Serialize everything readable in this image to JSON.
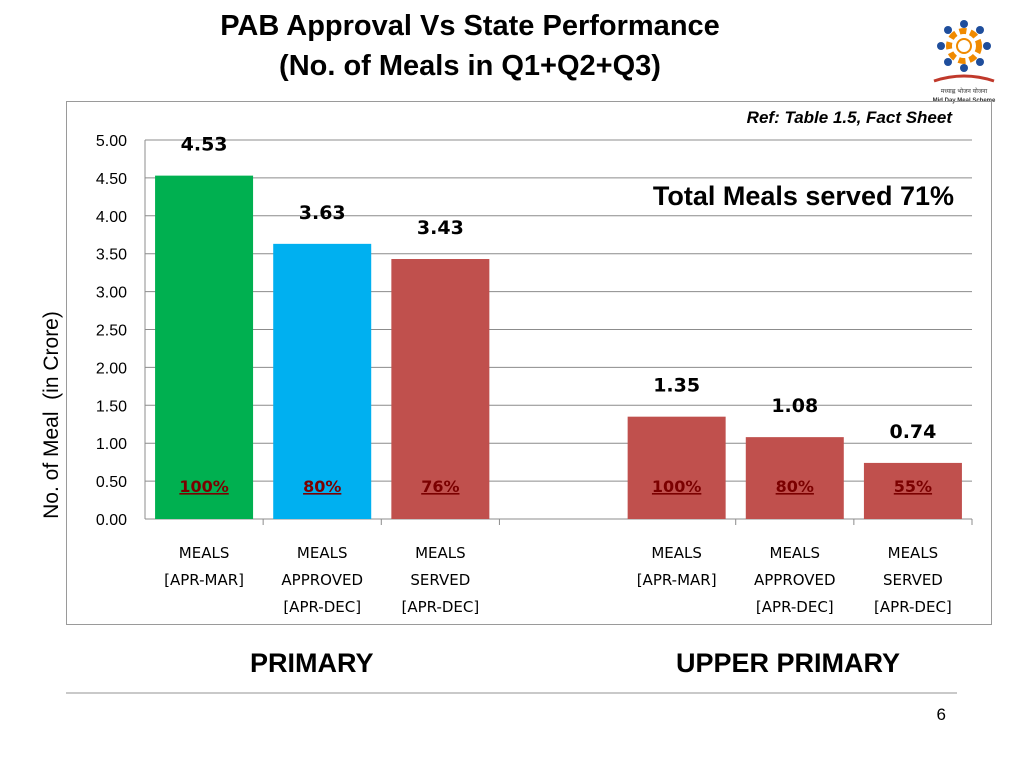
{
  "slide": {
    "title_line1": "PAB Approval  Vs State Performance",
    "title_line2": "(No. of Meals in Q1+Q2+Q3)",
    "reference": "Ref: Table 1.5, Fact Sheet",
    "highlight": "Total Meals served 71%",
    "page_number": "6",
    "logo_text_line1": "मध्याह्न भोजन योजना",
    "logo_text_line2": "Mid Day Meal Scheme"
  },
  "chart_data": {
    "type": "bar",
    "ylabel": "No. of Meal  (in Crore)",
    "ylim": [
      0,
      5
    ],
    "yticks": [
      "0.00",
      "0.50",
      "1.00",
      "1.50",
      "2.00",
      "2.50",
      "3.00",
      "3.50",
      "4.00",
      "4.50",
      "5.00"
    ],
    "grid": true,
    "groups": [
      {
        "name": "PRIMARY",
        "bars": [
          {
            "category": [
              "MEALS",
              "[APR-MAR]"
            ],
            "value": 4.53,
            "label": "4.53",
            "percent": "100%",
            "color": "#00b050"
          },
          {
            "category": [
              "MEALS",
              "APPROVED",
              "[APR-DEC]"
            ],
            "value": 3.63,
            "label": "3.63",
            "percent": "80%",
            "color": "#00b0f0"
          },
          {
            "category": [
              "MEALS",
              "SERVED",
              "[APR-DEC]"
            ],
            "value": 3.43,
            "label": "3.43",
            "percent": "76%",
            "color": "#c0504d"
          }
        ]
      },
      {
        "name": "UPPER PRIMARY",
        "bars": [
          {
            "category": [
              "MEALS",
              "[APR-MAR]"
            ],
            "value": 1.35,
            "label": "1.35",
            "percent": "100%",
            "color": "#c0504d"
          },
          {
            "category": [
              "MEALS",
              "APPROVED",
              "[APR-DEC]"
            ],
            "value": 1.08,
            "label": "1.08",
            "percent": "80%",
            "color": "#c0504d"
          },
          {
            "category": [
              "MEALS",
              "SERVED",
              "[APR-DEC]"
            ],
            "value": 0.74,
            "label": "0.74",
            "percent": "55%",
            "color": "#c0504d"
          }
        ]
      }
    ],
    "colors": {
      "gridline": "#8c8c8c",
      "percent_text": "#7b0000"
    }
  }
}
